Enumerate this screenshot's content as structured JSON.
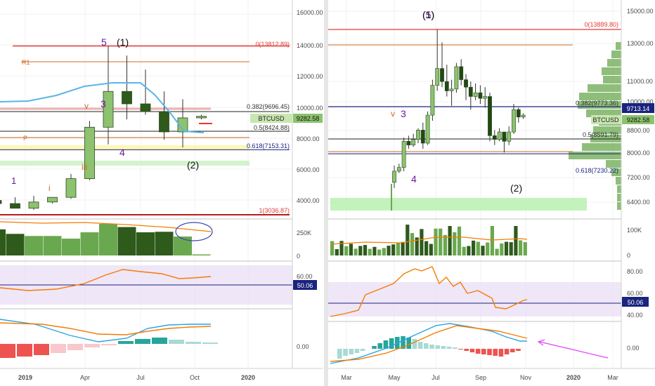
{
  "colors": {
    "bull": "#8dc26f",
    "bull_strong": "#6aa84f",
    "bear": "#2e5a1c",
    "bear_dark": "#1f4a12",
    "resistance": "#e53935",
    "fib_blue": "#1a237e",
    "rsi_line": "#f57c00",
    "rsi_band": "#e8dcf5",
    "macd_line": "#29a3e5",
    "signal_line": "#f57c00",
    "hist_pos": "#26a69a",
    "hist_neg": "#ef5350",
    "price_tag": "#c8e6b0",
    "level_tag": "#1a237e",
    "arrow": "#e040fb",
    "wave_purple": "#6a1b9a",
    "wave_orange": "#d2691e"
  },
  "left_panel": {
    "x_labels": [
      "2019",
      "Apr",
      "Jul",
      "Oct",
      "2020"
    ],
    "price_ticks": [
      "16000.00",
      "14000.00",
      "12000.00",
      "10000.00",
      "8000.00",
      "6000.00",
      "4000.00"
    ],
    "volume_ticks": [
      "250K",
      "0"
    ],
    "rsi_ticks": [
      "60.00"
    ],
    "macd_ticks": [
      "0.00"
    ],
    "symbol_tag": "BTCUSD",
    "price_tag": "9282.58",
    "rsi_tag": "50.06",
    "level_labels": {
      "fib0": "0(13812.89)",
      "fib382": "0.382(9696.45)",
      "fib5": "0.5(8424.88)",
      "fib618": "0.618(7153.31)",
      "fib1": "1(3036.87)",
      "r1": "R1",
      "pivot": "P"
    },
    "wave_labels": {
      "w1": "1",
      "wi": "i",
      "wiii": "iii",
      "w3": "3",
      "w4": "4",
      "w5": "5",
      "wp1": "(1)",
      "wp2": "(2)",
      "wv": "v"
    }
  },
  "right_panel": {
    "x_labels": [
      "Mar",
      "May",
      "Jul",
      "Sep",
      "Nov",
      "2020",
      "Mar"
    ],
    "price_ticks": [
      "15000.00",
      "13000.00",
      "11000.00",
      "10000.00",
      "8800.00",
      "8000.00",
      "7200.00",
      "6400.00"
    ],
    "volume_ticks": [
      "100K",
      "0"
    ],
    "rsi_ticks": [
      "80.00",
      "60.00",
      "40.00"
    ],
    "macd_ticks": [
      "0.00"
    ],
    "symbol_tag": "BTCUSD",
    "price_tag": "9282.58",
    "level_tag": "9713.14",
    "rsi_tag": "50.06",
    "level_labels": {
      "fib0": "0(13889.80)",
      "fib382": "0.382(9773.36)",
      "fib5": "0.5(8591.79)",
      "fib618": "0.618(7230.22)"
    },
    "wave_labels": {
      "w3": "3",
      "w4": "4",
      "wp5": "(5)",
      "wp1": "(1)",
      "wp2": "(2)",
      "wv": "v"
    }
  },
  "chart_data": [
    {
      "type": "candlestick",
      "timeframe": "monthly",
      "symbol": "BTCUSD",
      "x": [
        "2018-12",
        "2019-01",
        "2019-02",
        "2019-03",
        "2019-04",
        "2019-05",
        "2019-06",
        "2019-07",
        "2019-08",
        "2019-09",
        "2019-10",
        "2019-11"
      ],
      "open": [
        3900,
        3700,
        3400,
        3800,
        4100,
        5300,
        8600,
        10900,
        10100,
        9600,
        8300,
        9200
      ],
      "high": [
        4300,
        4100,
        4200,
        4100,
        5600,
        9000,
        13800,
        13200,
        12300,
        10900,
        10400,
        9400
      ],
      "low": [
        3200,
        3400,
        3300,
        3700,
        4000,
        5200,
        7500,
        9100,
        9400,
        7800,
        7300,
        9100
      ],
      "close": [
        3700,
        3400,
        3800,
        4100,
        5300,
        8600,
        10900,
        10100,
        9600,
        8300,
        9200,
        9300
      ],
      "volume": [
        248000,
        205000,
        185000,
        185000,
        160000,
        220000,
        300000,
        270000,
        220000,
        225000,
        180000,
        10000
      ],
      "ylim": [
        3000,
        16800
      ],
      "levels": [
        13812.89,
        9696.45,
        8424.88,
        7153.31,
        3036.87
      ]
    },
    {
      "type": "candlestick",
      "timeframe": "weekly",
      "symbol": "BTCUSD",
      "x_range": [
        "2019-05",
        "2019-11"
      ],
      "ylim": [
        5600,
        15800
      ],
      "levels": [
        13889.8,
        9773.36,
        8591.79,
        7230.22
      ],
      "last_price": 9282.58,
      "rsi_last": 50.06
    }
  ]
}
